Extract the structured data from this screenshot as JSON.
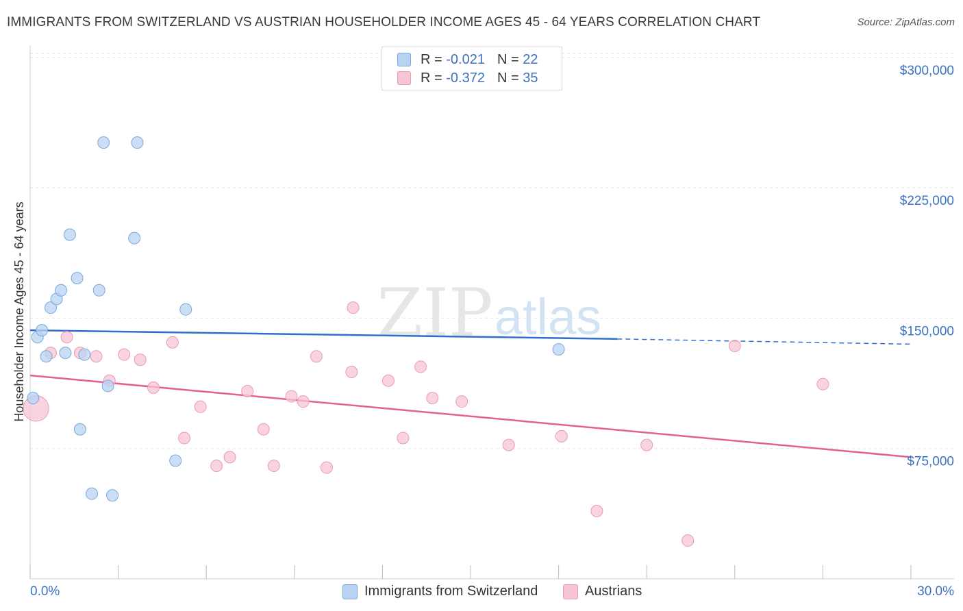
{
  "header": {
    "title": "IMMIGRANTS FROM SWITZERLAND VS AUSTRIAN HOUSEHOLDER INCOME AGES 45 - 64 YEARS CORRELATION CHART",
    "source": "Source: ZipAtlas.com"
  },
  "watermark": {
    "zip": "ZIP",
    "atlas": "atlas"
  },
  "legend": {
    "series1": {
      "r_label": "R =",
      "r_value": "-0.021",
      "n_label": "N =",
      "n_value": "22"
    },
    "series2": {
      "r_label": "R =",
      "r_value": "-0.372",
      "n_label": "N =",
      "n_value": "35"
    }
  },
  "colors": {
    "blue_fill": "#b8d3f2",
    "blue_stroke": "#7aa7dd",
    "blue_line": "#2f6fcc",
    "pink_fill": "#f7c6d6",
    "pink_stroke": "#e99ab5",
    "pink_line": "#e2628f",
    "label_blue": "#3b73c0",
    "grid": "#e3e3e3"
  },
  "chart_data": {
    "type": "scatter",
    "title": "IMMIGRANTS FROM SWITZERLAND VS AUSTRIAN HOUSEHOLDER INCOME AGES 45 - 64 YEARS CORRELATION CHART",
    "xlabel": "",
    "ylabel": "Householder Income Ages 45 - 64 years",
    "xlim": [
      0,
      30
    ],
    "ylim": [
      0,
      307000
    ],
    "x_tick_labels": [
      "0.0%",
      "30.0%"
    ],
    "y_ticks": [
      75000,
      150000,
      225000,
      300000
    ],
    "y_tick_labels": [
      "$75,000",
      "$150,000",
      "$225,000",
      "$300,000"
    ],
    "series": [
      {
        "name": "Immigrants from Switzerland",
        "color": "#7aa7dd",
        "points": [
          {
            "x": 0.1,
            "y": 104000,
            "s": 1
          },
          {
            "x": 0.25,
            "y": 139000,
            "s": 1
          },
          {
            "x": 0.4,
            "y": 143000,
            "s": 1
          },
          {
            "x": 0.55,
            "y": 128000,
            "s": 1
          },
          {
            "x": 0.7,
            "y": 156000,
            "s": 1
          },
          {
            "x": 0.9,
            "y": 161000,
            "s": 1
          },
          {
            "x": 1.05,
            "y": 166000,
            "s": 1
          },
          {
            "x": 1.2,
            "y": 130000,
            "s": 1
          },
          {
            "x": 1.35,
            "y": 198000,
            "s": 1
          },
          {
            "x": 1.6,
            "y": 173000,
            "s": 1
          },
          {
            "x": 1.7,
            "y": 86000,
            "s": 1
          },
          {
            "x": 1.85,
            "y": 129000,
            "s": 1
          },
          {
            "x": 2.1,
            "y": 49000,
            "s": 1
          },
          {
            "x": 2.35,
            "y": 166000,
            "s": 1
          },
          {
            "x": 2.5,
            "y": 251000,
            "s": 1
          },
          {
            "x": 2.65,
            "y": 111000,
            "s": 1
          },
          {
            "x": 2.8,
            "y": 48000,
            "s": 1
          },
          {
            "x": 3.55,
            "y": 196000,
            "s": 1
          },
          {
            "x": 3.65,
            "y": 251000,
            "s": 1
          },
          {
            "x": 4.95,
            "y": 68000,
            "s": 1
          },
          {
            "x": 5.3,
            "y": 155000,
            "s": 1
          },
          {
            "x": 18.0,
            "y": 132000,
            "s": 1
          }
        ],
        "trend": {
          "x0": 0,
          "y0": 143000,
          "x1": 20,
          "y1": 138000,
          "dash_to_x": 30,
          "dash_to_y": 135000
        }
      },
      {
        "name": "Austrians",
        "color": "#e99ab5",
        "points": [
          {
            "x": 0.2,
            "y": 98000,
            "s": 2.2
          },
          {
            "x": 0.7,
            "y": 130000,
            "s": 1
          },
          {
            "x": 1.25,
            "y": 139000,
            "s": 1
          },
          {
            "x": 1.7,
            "y": 130000,
            "s": 1
          },
          {
            "x": 2.25,
            "y": 128000,
            "s": 1
          },
          {
            "x": 2.7,
            "y": 114000,
            "s": 1
          },
          {
            "x": 3.2,
            "y": 129000,
            "s": 1
          },
          {
            "x": 3.75,
            "y": 126000,
            "s": 1
          },
          {
            "x": 4.2,
            "y": 110000,
            "s": 1
          },
          {
            "x": 4.85,
            "y": 136000,
            "s": 1
          },
          {
            "x": 5.25,
            "y": 81000,
            "s": 1
          },
          {
            "x": 5.8,
            "y": 99000,
            "s": 1
          },
          {
            "x": 6.35,
            "y": 65000,
            "s": 1
          },
          {
            "x": 6.8,
            "y": 70000,
            "s": 1
          },
          {
            "x": 7.4,
            "y": 108000,
            "s": 1
          },
          {
            "x": 7.95,
            "y": 86000,
            "s": 1
          },
          {
            "x": 8.3,
            "y": 65000,
            "s": 1
          },
          {
            "x": 8.9,
            "y": 105000,
            "s": 1
          },
          {
            "x": 9.3,
            "y": 102000,
            "s": 1
          },
          {
            "x": 9.75,
            "y": 128000,
            "s": 1
          },
          {
            "x": 10.1,
            "y": 64000,
            "s": 1
          },
          {
            "x": 10.95,
            "y": 119000,
            "s": 1
          },
          {
            "x": 11.0,
            "y": 156000,
            "s": 1
          },
          {
            "x": 12.2,
            "y": 114000,
            "s": 1
          },
          {
            "x": 12.7,
            "y": 81000,
            "s": 1
          },
          {
            "x": 13.3,
            "y": 122000,
            "s": 1
          },
          {
            "x": 13.7,
            "y": 104000,
            "s": 1
          },
          {
            "x": 14.7,
            "y": 102000,
            "s": 1
          },
          {
            "x": 16.3,
            "y": 77000,
            "s": 1
          },
          {
            "x": 18.1,
            "y": 82000,
            "s": 1
          },
          {
            "x": 19.3,
            "y": 39000,
            "s": 1
          },
          {
            "x": 21.0,
            "y": 77000,
            "s": 1
          },
          {
            "x": 22.4,
            "y": 22000,
            "s": 1
          },
          {
            "x": 24.0,
            "y": 134000,
            "s": 1
          },
          {
            "x": 27.0,
            "y": 112000,
            "s": 1
          }
        ],
        "trend": {
          "x0": 0,
          "y0": 117000,
          "x1": 30,
          "y1": 70000
        }
      }
    ]
  },
  "bottom_legend": {
    "item1": "Immigrants from Switzerland",
    "item2": "Austrians"
  }
}
